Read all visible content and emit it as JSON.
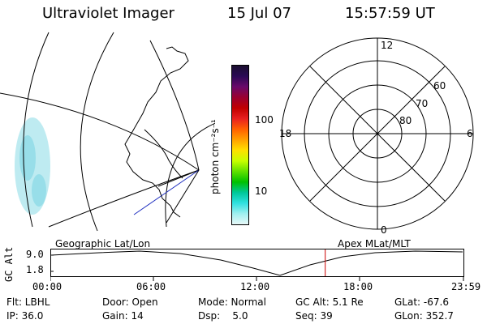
{
  "header": {
    "instrument": "Ultraviolet Imager",
    "date": "15 Jul 07",
    "time": "15:57:59 UT"
  },
  "map_panel": {
    "name": "Geographic Lat/Lon"
  },
  "colorbar": {
    "label": "photon cm⁻²s⁻¹",
    "ticks": [
      "100",
      "10"
    ],
    "colors": [
      "#1a0f2f",
      "#2a0a55",
      "#6a0a6a",
      "#9a0030",
      "#c00000",
      "#e82020",
      "#ff6000",
      "#ffa000",
      "#ffe000",
      "#c8ff00",
      "#60e000",
      "#00c000",
      "#00c89a",
      "#30e0e0",
      "#a0f0f0",
      "#e8f8f8"
    ]
  },
  "polar_panel": {
    "name": "Apex MLat/MLT",
    "mlt_labels": [
      "12",
      "18",
      "6",
      "0"
    ],
    "lat_labels": [
      "60",
      "70",
      "80"
    ]
  },
  "altitude_strip": {
    "ylabel": "GC Alt",
    "yticks": [
      "9.0",
      "1.8"
    ],
    "xticks": [
      "00:00",
      "06:00",
      "12:00",
      "18:00",
      "23:59"
    ],
    "current_time_hours": 15.97,
    "marker_color": "#cc0000"
  },
  "status": {
    "filter": "Flt: LBHL",
    "ip": "IP: 36.0",
    "door": "Door: Open",
    "gain": "Gain: 14",
    "mode": "Mode: Normal",
    "dsp": "Dsp:    5.0",
    "gc_alt": "GC Alt: 5.1 Re",
    "seq": "Seq: 39",
    "glat": "GLat: -67.6",
    "glon": "GLon: 352.7"
  }
}
